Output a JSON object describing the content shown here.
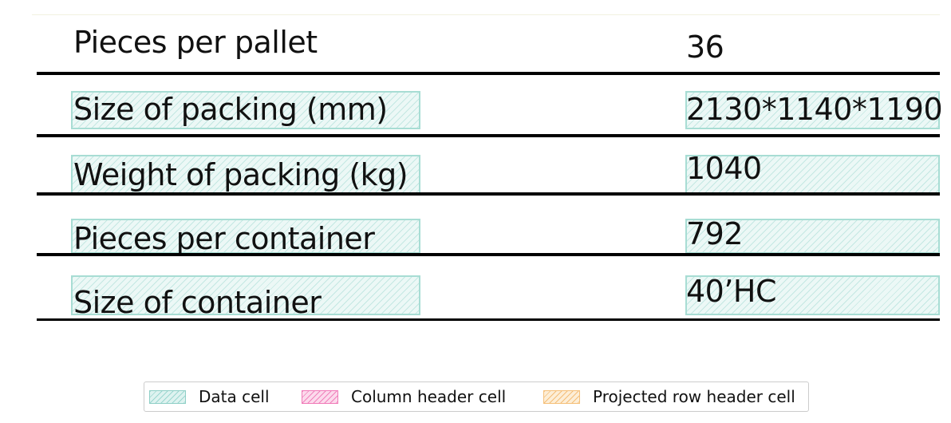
{
  "table": {
    "rows": [
      {
        "label": "Pieces per pallet",
        "value": "36"
      },
      {
        "label": "Size of packing (mm)",
        "value": "2130*1140*1190"
      },
      {
        "label": "Weight of packing (kg)",
        "value": "1040"
      },
      {
        "label": "Pieces per container",
        "value": "792"
      },
      {
        "label": "Size of container",
        "value": "40’HC"
      }
    ]
  },
  "legend": {
    "items": [
      {
        "label": "Data cell",
        "color": "#a8ddd4"
      },
      {
        "label": "Column header cell",
        "color": "#f07ab8"
      },
      {
        "label": "Projected row header cell",
        "color": "#f5c07a"
      }
    ]
  }
}
